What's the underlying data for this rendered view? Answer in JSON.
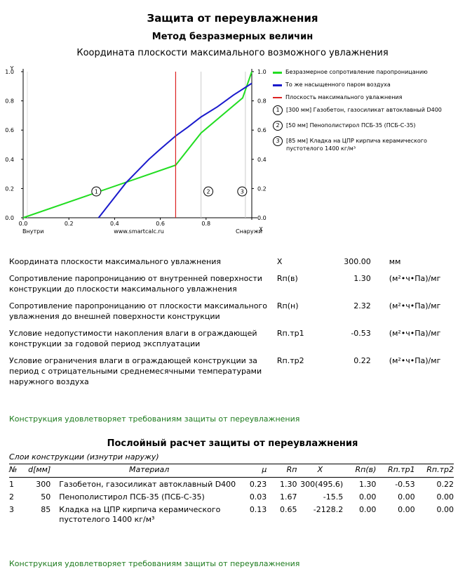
{
  "header": {
    "title": "Защита от переувлажнения",
    "subtitle": "Метод безразмерных величин",
    "chart_title": "Координата плоскости максимального возможного увлажнения"
  },
  "chart_data": {
    "type": "line",
    "title": "Координата плоскости максимального возможного увлажнения",
    "xlabel": "X",
    "ylabel": "Y",
    "xlim": [
      0,
      1
    ],
    "ylim": [
      0,
      1
    ],
    "x_ticks": [
      "0.0",
      "0.2",
      "0.4",
      "0.6",
      "0.8",
      "1.0"
    ],
    "y_ticks": [
      "0.0",
      "0.2",
      "0.4",
      "0.6",
      "0.8",
      "1.0"
    ],
    "y2_ticks": [
      "0.0",
      "0.2",
      "0.4",
      "0.6",
      "0.8",
      "1.0"
    ],
    "x_left_label": "Внутри",
    "x_right_label": "Снаружи",
    "watermark": "www.smartcalc.ru",
    "layer_boundaries": [
      0.0,
      0.667,
      0.778,
      1.0
    ],
    "layer_markers": [
      {
        "label": "1",
        "x": 0.32,
        "y": 0.18
      },
      {
        "label": "2",
        "x": 0.81,
        "y": 0.18
      },
      {
        "label": "3",
        "x": 0.958,
        "y": 0.18
      }
    ],
    "grid": false,
    "legend_position": "right",
    "series": [
      {
        "name": "Безразмерное сопротивление паропроницанию",
        "color": "#22dd22",
        "x": [
          0.0,
          0.667,
          0.778,
          0.96,
          1.0
        ],
        "y": [
          0.0,
          0.36,
          0.58,
          0.82,
          1.0
        ]
      },
      {
        "name": "То же насыщенного паром воздуха",
        "color": "#1a1acc",
        "x": [
          0.33,
          0.36,
          0.4,
          0.45,
          0.5,
          0.55,
          0.6,
          0.667,
          0.72,
          0.778,
          0.85,
          0.92,
          0.97,
          1.0
        ],
        "y": [
          0.0,
          0.06,
          0.14,
          0.24,
          0.32,
          0.4,
          0.47,
          0.56,
          0.62,
          0.69,
          0.76,
          0.84,
          0.89,
          0.92
        ]
      },
      {
        "name": "Плоскость максимального увлажнения",
        "color": "#dd2222",
        "x": [
          0.667,
          0.667
        ],
        "y": [
          0.0,
          1.0
        ]
      }
    ]
  },
  "legend": {
    "items": [
      {
        "label": "Безразмерное сопротивление паропроницанию",
        "color": "#22dd22"
      },
      {
        "label": "То же насыщенного паром воздуха",
        "color": "#1a1acc"
      },
      {
        "label": "Плоскость максимального увлажнения",
        "color": "#dd2222"
      }
    ],
    "layers": [
      {
        "num": "1",
        "label": "[300 мм] Газобетон, газосиликат автоклавный D400"
      },
      {
        "num": "2",
        "label": "[50 мм] Пенополистирол ПСБ-35 (ПСБ-С-35)"
      },
      {
        "num": "3",
        "label": "[85 мм] Кладка на ЦПР кирпича керамического пустотелого 1400 кг/м³"
      }
    ]
  },
  "params": [
    {
      "name": "Координата плоскости максимального увлажнения",
      "symbol": "X",
      "value": "300.00",
      "unit": "мм"
    },
    {
      "name": "Сопротивление паропроницанию от внутренней поверхности конструкции до плоскости максимального увлажнения",
      "symbol": "Rп(в)",
      "value": "1.30",
      "unit": "(м²•ч•Па)/мг"
    },
    {
      "name": "Сопротивление паропроницанию от плоскости максимального увлажнения до внешней поверхности конструкции",
      "symbol": "Rп(н)",
      "value": "2.32",
      "unit": "(м²•ч•Па)/мг"
    },
    {
      "name": "Условие недопустимости накопления влаги в ограждающей конструкции за годовой период эксплуатации",
      "symbol": "Rп.тр1",
      "value": "-0.53",
      "unit": "(м²•ч•Па)/мг"
    },
    {
      "name": "Условие ограничения влаги в ограждающей конструкции за период с отрицательными среднемесячными температурами наружного воздуха",
      "symbol": "Rп.тр2",
      "value": "0.22",
      "unit": "(м²•ч•Па)/мг"
    }
  ],
  "result_text": "Конструкция удовлетворяет требованиям защиты от переувлажнения",
  "layer_calc": {
    "title": "Послойный расчет защиты от переувлажнения",
    "subtitle": "Слои конструкции (изнутри наружу)",
    "columns": [
      "№",
      "d[мм]",
      "Материал",
      "μ",
      "Rп",
      "X",
      "Rп(в)",
      "Rп.тр1",
      "Rп.тр2"
    ],
    "rows": [
      {
        "no": "1",
        "d": "300",
        "material": "Газобетон, газосиликат автоклавный D400",
        "mu": "0.23",
        "rp": "1.30",
        "x": "300(495.6)",
        "rpv": "1.30",
        "tr1": "-0.53",
        "tr2": "0.22"
      },
      {
        "no": "2",
        "d": "50",
        "material": "Пенополистирол ПСБ-35 (ПСБ-С-35)",
        "mu": "0.03",
        "rp": "1.67",
        "x": "-15.5",
        "rpv": "0.00",
        "tr1": "0.00",
        "tr2": "0.00"
      },
      {
        "no": "3",
        "d": "85",
        "material": "Кладка на ЦПР кирпича керамического пустотелого 1400 кг/м³",
        "mu": "0.13",
        "rp": "0.65",
        "x": "-2128.2",
        "rpv": "0.00",
        "tr1": "0.00",
        "tr2": "0.00"
      }
    ],
    "result_text": "Конструкция удовлетворяет требованиям защиты от переувлажнения"
  }
}
